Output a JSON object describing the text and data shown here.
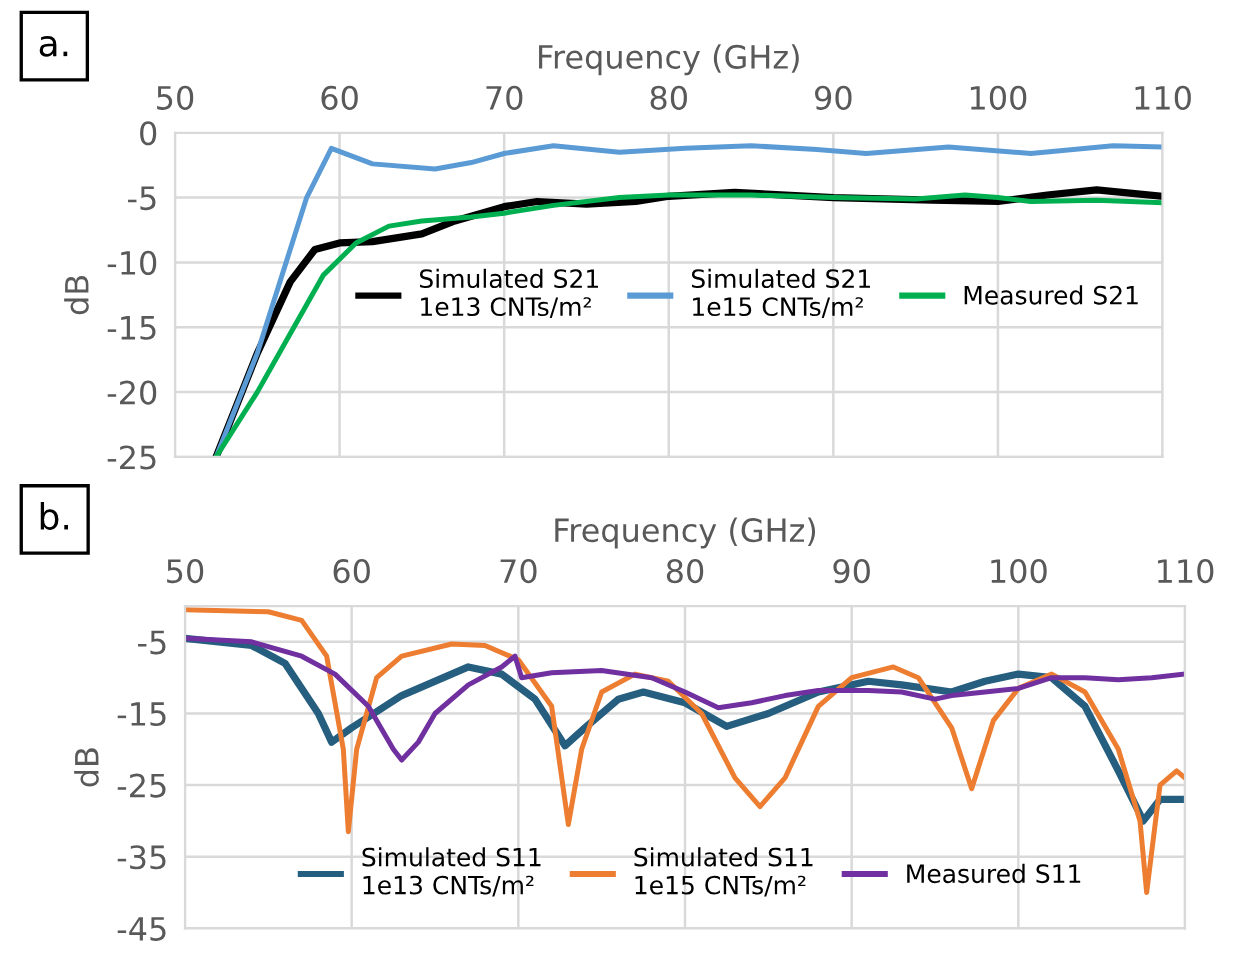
{
  "chart_data": [
    {
      "type": "line",
      "xlabel": "Frequency (GHz)",
      "ylabel": "dB",
      "annotations": [
        "a."
      ],
      "xlim": [
        50,
        110
      ],
      "xticks": [
        50,
        60,
        70,
        80,
        90,
        100,
        110
      ],
      "ylim": [
        -25,
        0
      ],
      "yticks": [
        0,
        -5,
        -10,
        -15,
        -20,
        -25
      ],
      "grid": true,
      "legend": "right",
      "line_style": "solid",
      "series": [
        {
          "name": "Simulated S21\n1e13 CNTs/m²",
          "color": "#000000",
          "x": [
            52.5,
            55,
            57,
            58.5,
            60,
            62,
            65,
            67,
            70,
            72,
            75,
            78,
            80,
            84,
            90,
            96,
            100,
            103,
            106,
            110
          ],
          "values": [
            -25,
            -17,
            -11.5,
            -9,
            -8.5,
            -8.4,
            -7.8,
            -6.8,
            -5.7,
            -5.3,
            -5.5,
            -5.3,
            -4.9,
            -4.6,
            -5.0,
            -5.2,
            -5.3,
            -4.8,
            -4.4,
            -4.9
          ]
        },
        {
          "name": "Simulated S21\n1e15 CNTs/m²",
          "color": "#5b9bd5",
          "x": [
            52.5,
            55,
            57,
            58,
            59.5,
            62,
            65.8,
            68,
            70,
            73,
            77,
            81,
            85,
            89,
            92,
            97,
            102,
            107,
            110
          ],
          "values": [
            -25,
            -17,
            -9,
            -5,
            -1.2,
            -2.4,
            -2.8,
            -2.3,
            -1.6,
            -1.0,
            -1.5,
            -1.2,
            -1.0,
            -1.3,
            -1.6,
            -1.1,
            -1.6,
            -1.0,
            -1.1
          ]
        },
        {
          "name": "Measured S21",
          "color": "#00b050",
          "x": [
            52.5,
            55,
            57,
            59,
            61,
            63,
            65,
            68,
            70,
            73,
            77,
            80,
            85,
            90,
            95,
            98,
            100,
            102,
            106,
            110
          ],
          "values": [
            -25,
            -20,
            -15.5,
            -11,
            -8.5,
            -7.2,
            -6.8,
            -6.5,
            -6.2,
            -5.6,
            -5.0,
            -4.8,
            -4.8,
            -5.0,
            -5.1,
            -4.8,
            -5.0,
            -5.3,
            -5.2,
            -5.4
          ]
        }
      ]
    },
    {
      "type": "line",
      "xlabel": "Frequency (GHz)",
      "ylabel": "dB",
      "annotations": [
        "b."
      ],
      "xlim": [
        50,
        110
      ],
      "xticks": [
        50,
        60,
        70,
        80,
        90,
        100,
        110
      ],
      "ylim": [
        -45,
        0
      ],
      "yticks": [
        -5,
        -15,
        -25,
        -35,
        -45
      ],
      "grid": true,
      "legend": "bottom right",
      "line_style": "solid",
      "series": [
        {
          "name": "Simulated S11\n1e13 CNTs/m²",
          "color": "#255e7e",
          "x": [
            50,
            54,
            56,
            58,
            58.8,
            60,
            63,
            67,
            69,
            71,
            72.8,
            74,
            76,
            77.5,
            80,
            82.5,
            85,
            88,
            91,
            93,
            96,
            98,
            100,
            102,
            104,
            106,
            107.5,
            108.5,
            110
          ],
          "values": [
            -4.5,
            -5.5,
            -8,
            -15,
            -19,
            -17,
            -12.5,
            -8.5,
            -9.5,
            -13,
            -19.5,
            -17,
            -13,
            -12,
            -13.5,
            -16.8,
            -15,
            -12,
            -10.5,
            -11,
            -12,
            -10.5,
            -9.5,
            -10,
            -14,
            -23,
            -30,
            -27,
            -27
          ]
        },
        {
          "name": "Simulated S11\n1e15 CNTs/m²",
          "color": "#ed7d31",
          "x": [
            50,
            55,
            57,
            58.5,
            59.5,
            59.8,
            60.3,
            61.5,
            63,
            66,
            68,
            70,
            72,
            73,
            73.8,
            75,
            77,
            79,
            81,
            83,
            84.5,
            86,
            88,
            90,
            92.5,
            94,
            96,
            97.2,
            98.5,
            100,
            102,
            104,
            106,
            107.3,
            107.7,
            108.5,
            109.5,
            110
          ],
          "values": [
            -0.5,
            -0.8,
            -2,
            -7,
            -20,
            -31.5,
            -20,
            -10,
            -7,
            -5.3,
            -5.5,
            -7.5,
            -14,
            -30.5,
            -20,
            -12,
            -9.5,
            -10.5,
            -15,
            -24,
            -28,
            -24,
            -14,
            -10,
            -8.5,
            -10,
            -17,
            -25.5,
            -16,
            -11.5,
            -9.5,
            -12,
            -20,
            -30,
            -40,
            -25,
            -23,
            -24
          ]
        },
        {
          "name": "Measured S11",
          "color": "#7030a0",
          "x": [
            50,
            54,
            57,
            59,
            61,
            62.5,
            63,
            64,
            65,
            67,
            69,
            69.8,
            70.2,
            72,
            75,
            78,
            80,
            82,
            84,
            86,
            88,
            91,
            93,
            95,
            96,
            98,
            100,
            102,
            104,
            106,
            108,
            110
          ],
          "values": [
            -4.5,
            -5,
            -7,
            -9.5,
            -14,
            -20,
            -21.5,
            -19,
            -15,
            -11,
            -8.5,
            -7,
            -10,
            -9.3,
            -9,
            -10,
            -12,
            -14.2,
            -13.5,
            -12.5,
            -11.8,
            -11.8,
            -12,
            -13,
            -12.5,
            -12,
            -11.5,
            -10,
            -10,
            -10.3,
            -10,
            -9.5
          ]
        }
      ]
    }
  ]
}
